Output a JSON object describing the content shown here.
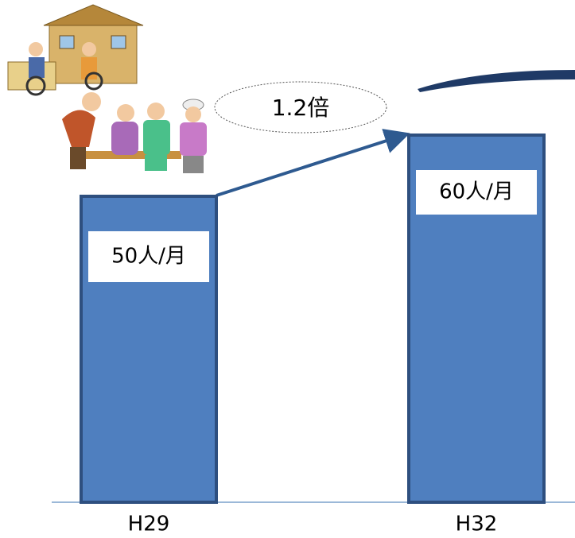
{
  "chart_data": {
    "type": "bar",
    "categories": [
      "H29",
      "H32"
    ],
    "values": [
      50,
      60
    ],
    "value_labels": [
      "50人/月",
      "60人/月"
    ],
    "color": "#4f7fbf",
    "ylim": [
      0,
      80
    ],
    "annotation": "1.2倍"
  }
}
